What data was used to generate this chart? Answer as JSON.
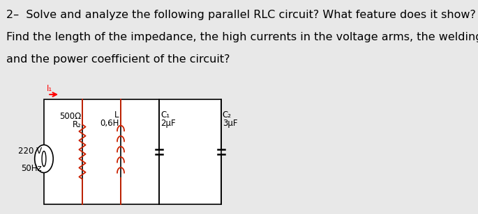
{
  "title_line1": "2–  Solve and analyze the following parallel RLC circuit? What feature does it show?",
  "title_line2": "Find the length of the impedance, the high currents in the voltage arms, the welding current,",
  "title_line3": "and the power coefficient of the circuit?",
  "bg_color": "#e8e8e8",
  "text_color": "#000000",
  "circuit_bg": "#ffffff",
  "label_R": "500Ω",
  "label_R2": "R₂",
  "label_L": "L",
  "label_L_val": "0,6H",
  "label_C1": "C₁",
  "label_C1_val": "2μF",
  "label_C2": "C₂",
  "label_C2_val": "3μF",
  "label_V": "220 V",
  "label_Hz": "50Hz",
  "label_I": "I₁",
  "font_size_text": 11.5,
  "font_size_circuit": 8.5,
  "resistor_color": "#cc2200",
  "inductor_color": "#cc2200"
}
